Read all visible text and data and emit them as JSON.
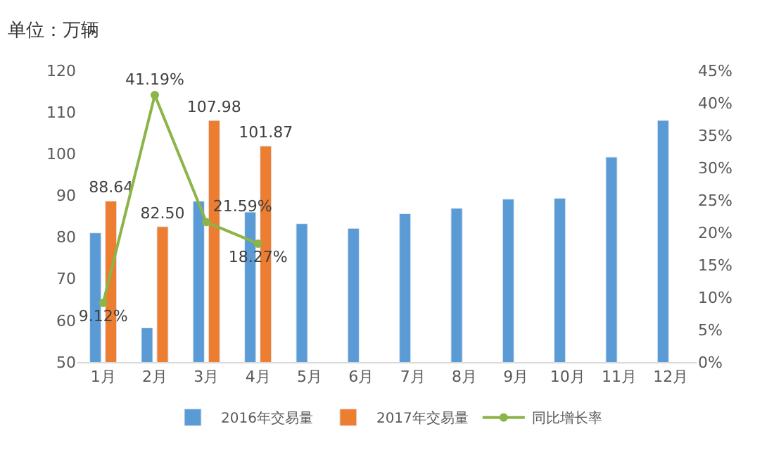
{
  "chart_data": {
    "type": "bar",
    "title": "单位：万辆",
    "categories": [
      "1月",
      "2月",
      "3月",
      "4月",
      "5月",
      "6月",
      "7月",
      "8月",
      "9月",
      "10月",
      "11月",
      "12月"
    ],
    "series": [
      {
        "name": "2016年交易量",
        "color": "#5b9bd5",
        "values": [
          81.0,
          58.2,
          88.6,
          86.0,
          83.2,
          82.1,
          85.6,
          86.9,
          89.1,
          89.3,
          99.2,
          108.0
        ]
      },
      {
        "name": "2017年交易量",
        "color": "#ed7d31",
        "values": [
          88.64,
          82.5,
          107.98,
          101.87,
          null,
          null,
          null,
          null,
          null,
          null,
          null,
          null
        ],
        "value_labels": [
          "88.64",
          "82.50",
          "107.98",
          "101.87",
          null,
          null,
          null,
          null,
          null,
          null,
          null,
          null
        ]
      },
      {
        "name": "同比增长率",
        "type": "line",
        "axis": "y2",
        "color": "#8cb449",
        "marker": "circle",
        "values": [
          9.12,
          41.19,
          21.59,
          18.27,
          null,
          null,
          null,
          null,
          null,
          null,
          null,
          null
        ],
        "value_labels": [
          "9.12%",
          "41.19%",
          "21.59%",
          "18.27%",
          null,
          null,
          null,
          null,
          null,
          null,
          null,
          null
        ]
      }
    ],
    "ylim": [
      50,
      120
    ],
    "yticks": [
      50,
      60,
      70,
      80,
      90,
      100,
      110,
      120
    ],
    "y2lim": [
      0,
      45
    ],
    "y2ticks": [
      {
        "value": 0,
        "label": "0%"
      },
      {
        "value": 5,
        "label": "5%"
      },
      {
        "value": 10,
        "label": "10%"
      },
      {
        "value": 15,
        "label": "15%"
      },
      {
        "value": 20,
        "label": "20%"
      },
      {
        "value": 25,
        "label": "25%"
      },
      {
        "value": 30,
        "label": "30%"
      },
      {
        "value": 35,
        "label": "35%"
      },
      {
        "value": 40,
        "label": "40%"
      },
      {
        "value": 45,
        "label": "45%"
      }
    ],
    "legend": "bottom"
  }
}
